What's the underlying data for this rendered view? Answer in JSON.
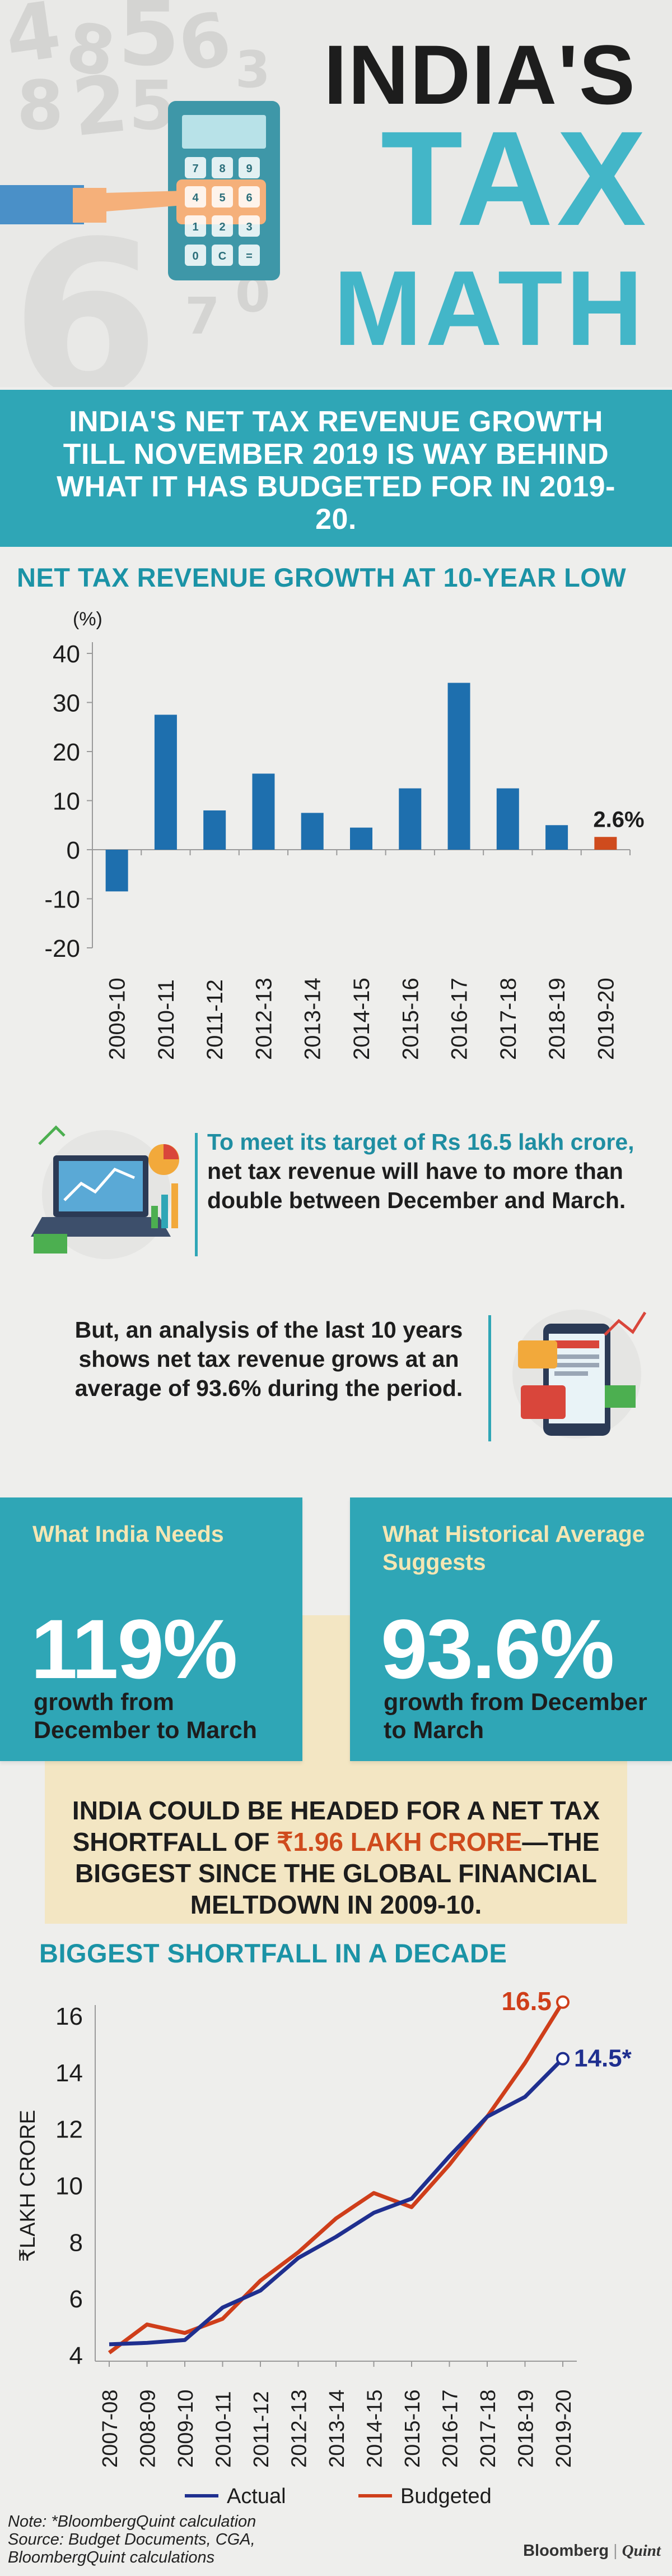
{
  "header": {
    "title_line1": "INDIA'S",
    "title_line2": "TAX",
    "title_line3": "MATH",
    "calculator_keys": [
      "7",
      "8",
      "9",
      "4",
      "5",
      "6",
      "1",
      "2",
      "3",
      "0",
      "C",
      "="
    ]
  },
  "intro": {
    "text": "INDIA'S NET TAX REVENUE GROWTH TILL NOVEMBER 2019 IS WAY BEHIND WHAT IT HAS BUDGETED FOR IN 2019-20."
  },
  "chart1_title": "NET TAX REVENUE GROWTH AT 10-YEAR LOW",
  "callout1": {
    "highlight": "To meet its target of Rs 16.5 lakh crore,",
    "rest": " net tax revenue will have to more than double between December and March."
  },
  "callout2": {
    "text": "But, an analysis of the last 10 years shows net tax revenue grows at an average of 93.6% during the period."
  },
  "cards": [
    {
      "label": "What India Needs",
      "value": "119%",
      "sub": "growth from December to March"
    },
    {
      "label": "What Historical Average Suggests",
      "value": "93.6%",
      "sub": "growth from December to March"
    }
  ],
  "shortfall": {
    "pre": "INDIA COULD BE HEADED FOR A NET TAX SHORTFALL OF ",
    "highlight": "₹1.96 LAKH CRORE",
    "post": "—THE BIGGEST SINCE THE GLOBAL FINANCIAL MELTDOWN IN 2009-10."
  },
  "chart2_title": "BIGGEST SHORTFALL IN A DECADE",
  "footer": {
    "note_line1": "Note: *BloombergQuint calculation",
    "note_line2": "Source: Budget Documents, CGA,",
    "note_line3": "BloombergQuint calculations",
    "brand_bloomberg": "Bloomberg",
    "brand_sep": "|",
    "brand_quint": "Quint"
  },
  "colors": {
    "teal": "#2fa6b6",
    "bar_blue": "#1e6fae",
    "highlight_orange": "#cf4b1d",
    "actual_line": "#1f2f8f",
    "budgeted_line": "#cf3e1a",
    "cream": "#f3e6c3"
  },
  "chart_data": [
    {
      "type": "bar",
      "title": "NET TAX REVENUE GROWTH AT 10-YEAR LOW",
      "ylabel": "(%)",
      "xlabel": "",
      "ylim": [
        -20,
        40
      ],
      "yticks": [
        40,
        30,
        20,
        10,
        0,
        -10,
        -20
      ],
      "categories": [
        "2009-10",
        "2010-11",
        "2011-12",
        "2012-13",
        "2013-14",
        "2014-15",
        "2015-16",
        "2016-17",
        "2017-18",
        "2018-19",
        "2019-20"
      ],
      "values": [
        -8.5,
        27.5,
        8,
        15.5,
        7.5,
        4.5,
        12.5,
        34,
        12.5,
        5,
        2.6
      ],
      "highlight_index": 10,
      "annotations": [
        {
          "category": "2019-20",
          "text": "2.6%"
        }
      ],
      "grid": false
    },
    {
      "type": "line",
      "title": "BIGGEST SHORTFALL IN A DECADE",
      "ylabel": "₹LAKH CRORE",
      "xlabel": "",
      "ylim": [
        4,
        16
      ],
      "yticks": [
        16,
        14,
        12,
        10,
        8,
        6,
        4
      ],
      "x": [
        "2007-08",
        "2008-09",
        "2009-10",
        "2010-11",
        "2011-12",
        "2012-13",
        "2013-14",
        "2014-15",
        "2015-16",
        "2016-17",
        "2017-18",
        "2018-19",
        "2019-20"
      ],
      "series": [
        {
          "name": "Actual",
          "values": [
            4.4,
            4.45,
            4.55,
            5.7,
            6.3,
            7.45,
            8.2,
            9.05,
            9.55,
            11.05,
            12.45,
            13.15,
            14.5
          ]
        },
        {
          "name": "Budgeted",
          "values": [
            4.1,
            5.1,
            4.8,
            5.3,
            6.65,
            7.65,
            8.85,
            9.75,
            9.25,
            10.75,
            12.45,
            14.35,
            16.5
          ]
        }
      ],
      "end_labels": {
        "Actual": "14.5*",
        "Budgeted": "16.5"
      },
      "legend": "bottom",
      "grid": false
    }
  ]
}
